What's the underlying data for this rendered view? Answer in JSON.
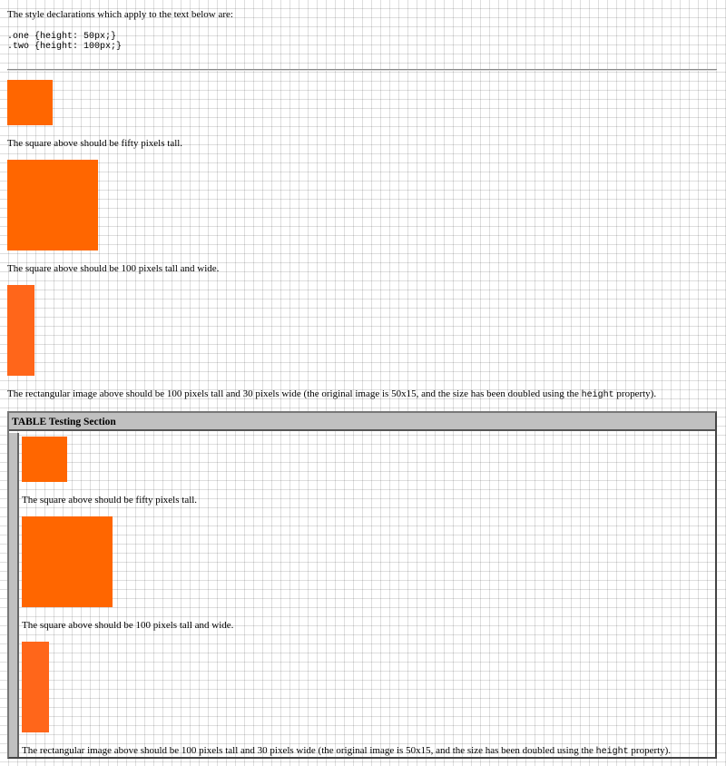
{
  "intro": "The style declarations which apply to the text below are:",
  "styles": ".one {height: 50px;}\n.two {height: 100px;}",
  "main": {
    "caption_square_50": "The square above should be fifty pixels tall.",
    "caption_square_100": "The square above should be 100 pixels tall and wide.",
    "caption_rect_pre": "The rectangular image above should be 100 pixels tall and 30 pixels wide (the original image is 50x15, and the size has been doubled using the ",
    "caption_rect_code": "height",
    "caption_rect_post": " property)."
  },
  "table": {
    "heading": "TABLE Testing Section",
    "caption_square_50": "The square above should be fifty pixels tall.",
    "caption_square_100": "The square above should be 100 pixels tall and wide.",
    "caption_rect_pre": "The rectangular image above should be 100 pixels tall and 30 pixels wide (the original image is 50x15, and the size has been doubled using the ",
    "caption_rect_code": "height",
    "caption_rect_post": " property)."
  },
  "colors": {
    "square": "#ff6600",
    "rect": "#ff661a",
    "table_header": "#c0c0c0"
  }
}
